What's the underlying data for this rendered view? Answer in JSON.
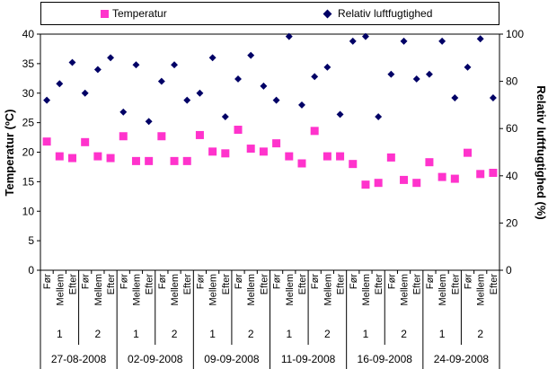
{
  "legend": {
    "temp_label": "Temperatur",
    "rh_label": "Relativ luftfugtighed",
    "temp_color": "#ff33cc",
    "rh_color": "#000066"
  },
  "chart_data": {
    "type": "scatter",
    "ylabel_left": "Temperatur (ºC)",
    "ylabel_right": "Relativ luftfugtighed (%)",
    "ylim_left": [
      0,
      40
    ],
    "ylim_right": [
      0,
      100
    ],
    "yticks_left": [
      "0",
      "5",
      "10",
      "15",
      "20",
      "25",
      "30",
      "35",
      "40"
    ],
    "yticks_right": [
      "0",
      "20",
      "40",
      "60",
      "80",
      "100"
    ],
    "grid": false,
    "legend_position": "top",
    "dates": [
      {
        "label": "27-08-2008",
        "groups": [
          "1",
          "2"
        ]
      },
      {
        "label": "02-09-2008",
        "groups": [
          "1",
          "2"
        ]
      },
      {
        "label": "09-09-2008",
        "groups": [
          "1",
          "2"
        ]
      },
      {
        "label": "11-09-2008",
        "groups": [
          "1",
          "2"
        ]
      },
      {
        "label": "16-09-2008",
        "groups": [
          "1",
          "2"
        ]
      },
      {
        "label": "24-09-2008",
        "groups": [
          "1",
          "2"
        ]
      }
    ],
    "phases": [
      "Før",
      "Mellem",
      "Efter"
    ],
    "series": [
      {
        "name": "Temperatur",
        "axis": "left",
        "marker": "square",
        "values": [
          21.8,
          19.3,
          19.0,
          21.7,
          19.3,
          19.0,
          22.7,
          18.5,
          18.5,
          22.7,
          18.5,
          18.5,
          22.9,
          20.1,
          19.8,
          23.8,
          20.6,
          20.1,
          21.5,
          19.3,
          18.1,
          23.6,
          19.3,
          19.3,
          18.0,
          14.5,
          14.8,
          19.1,
          15.3,
          14.8,
          18.3,
          15.8,
          15.5,
          19.9,
          16.3,
          16.5
        ]
      },
      {
        "name": "Relativ luftfugtighed",
        "axis": "right",
        "marker": "diamond",
        "values": [
          72,
          79,
          88,
          75,
          85,
          90,
          67,
          87,
          63,
          80,
          87,
          72,
          75,
          90,
          65,
          81,
          91,
          78,
          72,
          99,
          70,
          82,
          86,
          66,
          97,
          99,
          65,
          83,
          97,
          81,
          83,
          97,
          73,
          86,
          98,
          73
        ]
      }
    ]
  }
}
